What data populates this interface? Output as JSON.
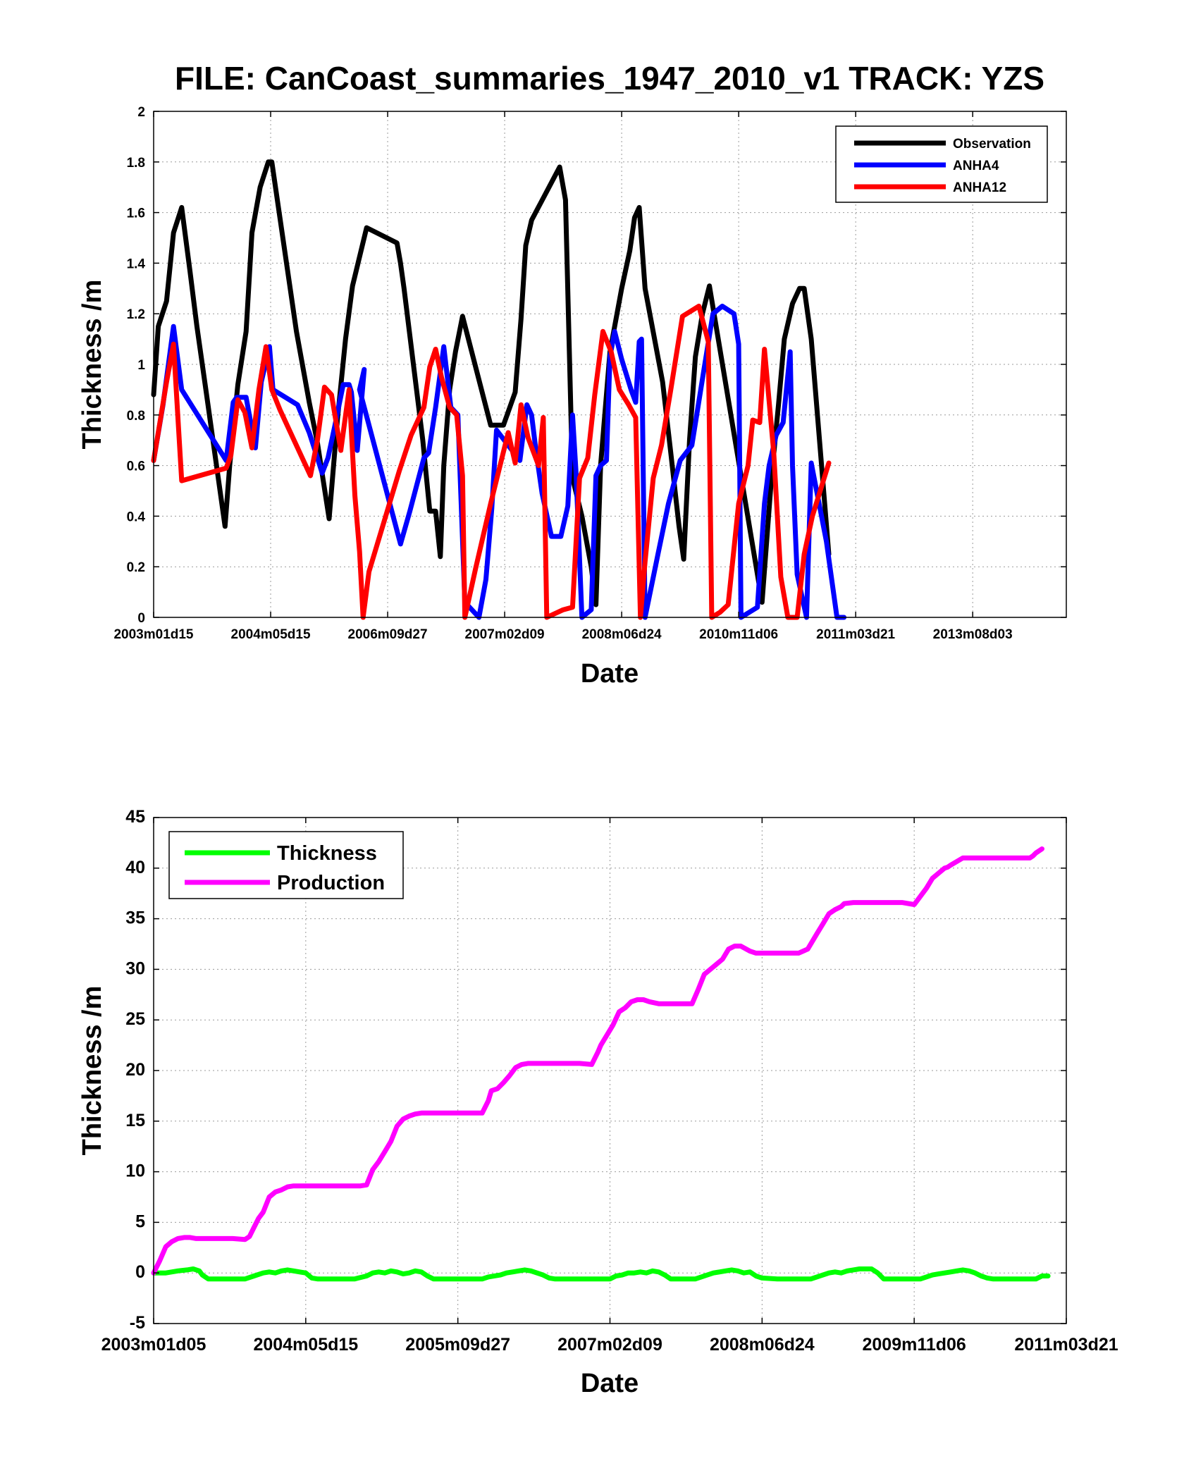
{
  "chart_data": [
    {
      "type": "line",
      "title": "FILE: CanCoast_summaries_1947_2010_v1 TRACK: YZS",
      "xlabel": "Date",
      "ylabel": "Thickness /m",
      "xlim": [
        0,
        3900
      ],
      "ylim": [
        0,
        2
      ],
      "yticks": [
        "0",
        "0.2",
        "0.4",
        "0.6",
        "0.8",
        "1",
        "1.2",
        "1.4",
        "1.6",
        "1.8",
        "2"
      ],
      "xticks": [
        {
          "pos": 0,
          "label": "2003m01d15"
        },
        {
          "pos": 500,
          "label": "2004m05d15"
        },
        {
          "pos": 1000,
          "label": "2006m09d27"
        },
        {
          "pos": 1500,
          "label": "2007m02d09"
        },
        {
          "pos": 2000,
          "label": "2008m06d24"
        },
        {
          "pos": 2500,
          "label": "2010m11d06"
        },
        {
          "pos": 3000,
          "label": "2011m03d21"
        },
        {
          "pos": 3500,
          "label": "2013m08d03"
        }
      ],
      "grid": true,
      "legend_position": "top-right",
      "series": [
        {
          "name": "Observation",
          "color": "#000000",
          "x": [
            0,
            20,
            55,
            85,
            120,
            155,
            185,
            220,
            305,
            325,
            360,
            395,
            420,
            455,
            490,
            505,
            610,
            665,
            700,
            750,
            785,
            820,
            850,
            910,
            1040,
            1055,
            1070,
            1110,
            1150,
            1180,
            1205,
            1225,
            1240,
            1265,
            1290,
            1320,
            1440,
            1470,
            1495,
            1545,
            1570,
            1590,
            1615,
            1735,
            1760,
            1790,
            1830,
            1870,
            1890,
            1910,
            1950,
            2000,
            2035,
            2055,
            2075,
            2100,
            2175,
            2210,
            2245,
            2265,
            2290,
            2315,
            2345,
            2375,
            2600,
            2640,
            2670,
            2695,
            2730,
            2760,
            2780,
            2810,
            2885
          ],
          "y": [
            0.88,
            1.15,
            1.25,
            1.52,
            1.62,
            1.37,
            1.15,
            0.92,
            0.36,
            0.6,
            0.92,
            1.13,
            1.52,
            1.7,
            1.8,
            1.8,
            1.13,
            0.85,
            0.69,
            0.39,
            0.78,
            1.1,
            1.31,
            1.54,
            1.48,
            1.4,
            1.3,
            1.0,
            0.7,
            0.42,
            0.42,
            0.24,
            0.6,
            0.9,
            1.05,
            1.19,
            0.76,
            0.76,
            0.76,
            0.89,
            1.18,
            1.47,
            1.57,
            1.78,
            1.65,
            0.55,
            0.4,
            0.2,
            0.05,
            0.6,
            1.05,
            1.3,
            1.45,
            1.58,
            1.62,
            1.3,
            0.93,
            0.65,
            0.36,
            0.23,
            0.7,
            1.03,
            1.2,
            1.31,
            0.06,
            0.55,
            0.84,
            1.1,
            1.24,
            1.3,
            1.3,
            1.1,
            0.25
          ]
        },
        {
          "name": "ANHA4",
          "color": "#0000ff",
          "x": [
            0,
            40,
            85,
            120,
            310,
            340,
            355,
            395,
            435,
            460,
            495,
            510,
            615,
            665,
            700,
            720,
            745,
            775,
            810,
            835,
            845,
            870,
            900,
            880,
            1055,
            1095,
            1155,
            1175,
            1205,
            1240,
            1270,
            1300,
            1330,
            1390,
            1420,
            1445,
            1465,
            1565,
            1595,
            1615,
            1635,
            1660,
            1700,
            1740,
            1770,
            1790,
            1805,
            1830,
            1870,
            1890,
            1910,
            1935,
            1950,
            1970,
            2000,
            2040,
            2060,
            2075,
            2085,
            2100,
            2155,
            2200,
            2250,
            2300,
            2350,
            2390,
            2430,
            2480,
            2500,
            2510,
            2545,
            2580,
            2610,
            2630,
            2660,
            2690,
            2720,
            2730,
            2750,
            2790,
            2810,
            2875,
            2920,
            2950
          ],
          "y": [
            0.62,
            0.84,
            1.15,
            0.9,
            0.62,
            0.85,
            0.87,
            0.87,
            0.67,
            0.93,
            1.07,
            0.9,
            0.84,
            0.73,
            0.63,
            0.57,
            0.63,
            0.76,
            0.92,
            0.92,
            0.89,
            0.66,
            0.98,
            0.9,
            0.29,
            0.42,
            0.63,
            0.65,
            0.83,
            1.07,
            0.83,
            0.8,
            0.06,
            0.0,
            0.15,
            0.43,
            0.74,
            0.62,
            0.84,
            0.8,
            0.65,
            0.49,
            0.32,
            0.32,
            0.44,
            0.8,
            0.57,
            0.0,
            0.03,
            0.56,
            0.6,
            0.62,
            1.03,
            1.13,
            1.02,
            0.9,
            0.85,
            1.09,
            1.1,
            0.0,
            0.25,
            0.45,
            0.62,
            0.68,
            0.97,
            1.2,
            1.23,
            1.2,
            1.08,
            0.0,
            0.02,
            0.04,
            0.45,
            0.6,
            0.72,
            0.77,
            1.05,
            0.6,
            0.17,
            0.0,
            0.61,
            0.3,
            0.0,
            0.0
          ]
        },
        {
          "name": "ANHA12",
          "color": "#ff0000",
          "x": [
            0,
            25,
            55,
            85,
            120,
            310,
            330,
            360,
            390,
            420,
            450,
            480,
            505,
            540,
            670,
            700,
            730,
            760,
            800,
            835,
            860,
            880,
            895,
            920,
            1050,
            1100,
            1155,
            1180,
            1205,
            1230,
            1265,
            1295,
            1320,
            1330,
            1375,
            1440,
            1515,
            1545,
            1570,
            1600,
            1645,
            1665,
            1680,
            1750,
            1790,
            1820,
            1855,
            1885,
            1920,
            1955,
            1990,
            2030,
            2060,
            2080,
            2100,
            2135,
            2170,
            2210,
            2260,
            2330,
            2370,
            2385,
            2420,
            2455,
            2500,
            2540,
            2560,
            2590,
            2610,
            2650,
            2680,
            2710,
            2735,
            2750,
            2780,
            2815,
            2885
          ],
          "y": [
            0.62,
            0.76,
            0.93,
            1.08,
            0.54,
            0.59,
            0.64,
            0.86,
            0.81,
            0.67,
            0.9,
            1.07,
            0.9,
            0.82,
            0.56,
            0.7,
            0.91,
            0.88,
            0.66,
            0.9,
            0.48,
            0.26,
            0.0,
            0.18,
            0.58,
            0.72,
            0.83,
            0.99,
            1.06,
            0.95,
            0.83,
            0.8,
            0.56,
            0.0,
            0.19,
            0.45,
            0.73,
            0.61,
            0.84,
            0.71,
            0.6,
            0.79,
            0.0,
            0.03,
            0.04,
            0.55,
            0.63,
            0.88,
            1.13,
            1.05,
            0.9,
            0.84,
            0.79,
            0.0,
            0.22,
            0.55,
            0.68,
            0.9,
            1.19,
            1.23,
            1.09,
            0.0,
            0.02,
            0.05,
            0.45,
            0.6,
            0.78,
            0.77,
            1.06,
            0.65,
            0.16,
            0.0,
            0.0,
            0.0,
            0.25,
            0.4,
            0.61
          ]
        }
      ]
    },
    {
      "type": "line",
      "title": "",
      "xlabel": "Date",
      "ylabel": "Thickness /m",
      "xlim": [
        0,
        3000
      ],
      "ylim": [
        -5,
        45
      ],
      "yticks": [
        "-5",
        "0",
        "5",
        "10",
        "15",
        "20",
        "25",
        "30",
        "35",
        "40",
        "45"
      ],
      "xticks": [
        {
          "pos": 0,
          "label": "2003m01d05"
        },
        {
          "pos": 500,
          "label": "2004m05d15"
        },
        {
          "pos": 1000,
          "label": "2005m09d27"
        },
        {
          "pos": 1500,
          "label": "2007m02d09"
        },
        {
          "pos": 2000,
          "label": "2008m06d24"
        },
        {
          "pos": 2500,
          "label": "2009m11d06"
        },
        {
          "pos": 3000,
          "label": "2011m03d21"
        }
      ],
      "grid": true,
      "legend_position": "top-left",
      "series": [
        {
          "name": "Thickness",
          "color": "#00ff00",
          "x": [
            0,
            40,
            80,
            110,
            130,
            150,
            160,
            180,
            220,
            260,
            300,
            330,
            360,
            380,
            400,
            420,
            440,
            460,
            480,
            500,
            520,
            540,
            570,
            600,
            660,
            700,
            720,
            740,
            760,
            780,
            800,
            820,
            840,
            860,
            880,
            900,
            920,
            940,
            960,
            1000,
            1050,
            1080,
            1100,
            1140,
            1160,
            1180,
            1200,
            1220,
            1240,
            1260,
            1280,
            1300,
            1320,
            1340,
            1360,
            1380,
            1400,
            1440,
            1500,
            1520,
            1540,
            1560,
            1580,
            1600,
            1620,
            1640,
            1660,
            1680,
            1700,
            1720,
            1740,
            1760,
            1780,
            1800,
            1820,
            1840,
            1860,
            1880,
            1900,
            1920,
            1940,
            1960,
            1980,
            2000,
            2050,
            2080,
            2100,
            2120,
            2140,
            2160,
            2180,
            2200,
            2220,
            2240,
            2260,
            2280,
            2300,
            2320,
            2340,
            2360,
            2380,
            2400,
            2500,
            2520,
            2540,
            2560,
            2580,
            2600,
            2620,
            2640,
            2660,
            2680,
            2700,
            2720,
            2740,
            2760,
            2800,
            2850,
            2880,
            2900,
            2920,
            2940
          ],
          "y": [
            0,
            0,
            0.2,
            0.3,
            0.4,
            0.2,
            -0.2,
            -0.6,
            -0.6,
            -0.6,
            -0.6,
            -0.3,
            0,
            0.1,
            0,
            0.2,
            0.3,
            0.2,
            0.1,
            0,
            -0.5,
            -0.6,
            -0.6,
            -0.6,
            -0.6,
            -0.3,
            0,
            0.1,
            0,
            0.2,
            0.1,
            -0.1,
            0,
            0.2,
            0.1,
            -0.3,
            -0.6,
            -0.6,
            -0.6,
            -0.6,
            -0.6,
            -0.6,
            -0.4,
            -0.2,
            0,
            0.1,
            0.2,
            0.3,
            0.2,
            0,
            -0.2,
            -0.5,
            -0.6,
            -0.6,
            -0.6,
            -0.6,
            -0.6,
            -0.6,
            -0.6,
            -0.3,
            -0.2,
            0,
            0,
            0.1,
            0,
            0.2,
            0.1,
            -0.2,
            -0.6,
            -0.6,
            -0.6,
            -0.6,
            -0.6,
            -0.4,
            -0.2,
            0,
            0.1,
            0.2,
            0.3,
            0.2,
            0,
            0.1,
            -0.3,
            -0.5,
            -0.6,
            -0.6,
            -0.6,
            -0.6,
            -0.6,
            -0.6,
            -0.4,
            -0.2,
            0,
            0.1,
            0,
            0.2,
            0.3,
            0.4,
            0.4,
            0.4,
            0,
            -0.6,
            -0.6,
            -0.6,
            -0.4,
            -0.2,
            -0.1,
            0,
            0.1,
            0.2,
            0.3,
            0.2,
            0,
            -0.3,
            -0.5,
            -0.6,
            -0.6,
            -0.6,
            -0.6,
            -0.6,
            -0.3,
            -0.3
          ]
        },
        {
          "name": "Production",
          "color": "#ff00ff",
          "x": [
            0,
            20,
            40,
            60,
            80,
            100,
            120,
            140,
            160,
            180,
            200,
            260,
            300,
            315,
            330,
            345,
            360,
            380,
            400,
            420,
            440,
            460,
            480,
            500,
            520,
            540,
            560,
            580,
            600,
            640,
            680,
            700,
            720,
            740,
            760,
            780,
            800,
            820,
            840,
            860,
            880,
            900,
            920,
            940,
            960,
            980,
            1000,
            1050,
            1080,
            1100,
            1110,
            1130,
            1150,
            1170,
            1190,
            1210,
            1230,
            1260,
            1280,
            1300,
            1330,
            1360,
            1400,
            1440,
            1460,
            1470,
            1490,
            1510,
            1530,
            1550,
            1570,
            1590,
            1610,
            1630,
            1660,
            1690,
            1720,
            1750,
            1770,
            1790,
            1810,
            1830,
            1850,
            1870,
            1890,
            1910,
            1930,
            1960,
            1980,
            2000,
            2030,
            2060,
            2090,
            2120,
            2150,
            2170,
            2180,
            2200,
            2220,
            2240,
            2260,
            2270,
            2300,
            2340,
            2380,
            2420,
            2460,
            2500,
            2520,
            2540,
            2560,
            2580,
            2600,
            2610,
            2620,
            2660,
            2700,
            2740,
            2790,
            2860,
            2880,
            2890,
            2900,
            2920
          ],
          "y": [
            0,
            1.2,
            2.6,
            3.1,
            3.4,
            3.5,
            3.5,
            3.4,
            3.4,
            3.4,
            3.4,
            3.4,
            3.3,
            3.6,
            4.5,
            5.4,
            6,
            7.5,
            8,
            8.2,
            8.5,
            8.6,
            8.6,
            8.6,
            8.6,
            8.6,
            8.6,
            8.6,
            8.6,
            8.6,
            8.6,
            8.7,
            10.2,
            11,
            12,
            13,
            14.5,
            15.2,
            15.5,
            15.7,
            15.8,
            15.8,
            15.8,
            15.8,
            15.8,
            15.8,
            15.8,
            15.8,
            15.8,
            17,
            18,
            18.2,
            18.8,
            19.5,
            20.3,
            20.6,
            20.7,
            20.7,
            20.7,
            20.7,
            20.7,
            20.7,
            20.7,
            20.6,
            21.8,
            22.5,
            23.5,
            24.5,
            25.8,
            26.2,
            26.8,
            27,
            27,
            26.8,
            26.6,
            26.6,
            26.6,
            26.6,
            26.6,
            28,
            29.5,
            30,
            30.5,
            31,
            32,
            32.3,
            32.3,
            31.8,
            31.6,
            31.6,
            31.6,
            31.6,
            31.6,
            31.6,
            32,
            33,
            33.5,
            34.5,
            35.5,
            35.9,
            36.2,
            36.5,
            36.6,
            36.6,
            36.6,
            36.6,
            36.6,
            36.4,
            37.2,
            38,
            39,
            39.5,
            40,
            40.1,
            40.3,
            41,
            41,
            41,
            41,
            41,
            41,
            41.2,
            41.5,
            41.9
          ]
        }
      ]
    }
  ]
}
